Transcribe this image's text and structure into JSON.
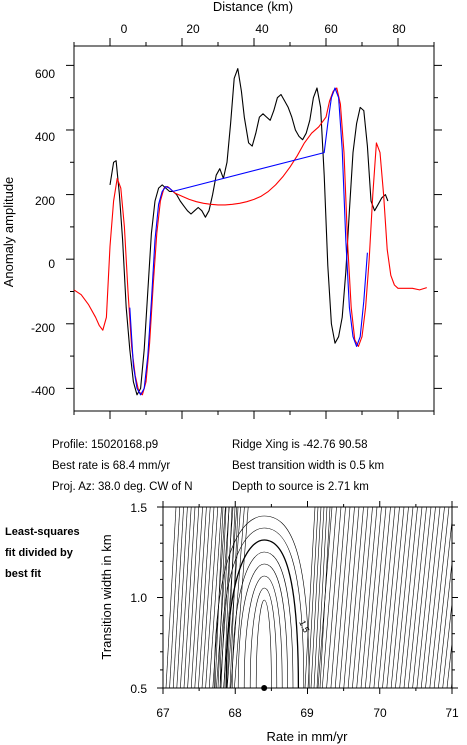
{
  "top_chart": {
    "xlabel": "Distance (km)",
    "ylabel": "Anomaly amplitude",
    "xticks": [
      "0",
      "20",
      "40",
      "60",
      "80"
    ],
    "yticks": [
      "600",
      "400",
      "200",
      "0",
      "-200",
      "-400"
    ]
  },
  "info": {
    "profile": "Profile: 15020168.p9",
    "best_rate": "Best rate is 68.4 mm/yr",
    "proj_az": "Proj. Az: 38.0 deg. CW of N",
    "ridge_xing": "Ridge Xing is -42.76 90.58",
    "best_width": "Best transition width is 0.5 km",
    "depth": "Depth to source is   2.71 km"
  },
  "contour_chart": {
    "note_line1": "Least-squares",
    "note_line2": "fit divided by",
    "note_line3": "best fit",
    "xlabel": "Rate in mm/yr",
    "ylabel": "Transition width in km",
    "xticks": [
      "67",
      "68",
      "69",
      "70",
      "71"
    ],
    "yticks": [
      "1.5",
      "1.0",
      "0.5"
    ],
    "contour_label": "1.5"
  },
  "chart_data": [
    {
      "type": "line",
      "xlabel": "Distance (km)",
      "ylabel": "Anomaly amplitude",
      "xlim": [
        -10,
        90
      ],
      "ylim": [
        -470,
        660
      ],
      "series": [
        {
          "color": "#000000",
          "x": [
            0,
            1,
            1.7,
            2.6,
            3.5,
            4.5,
            5.5,
            6.5,
            7.5,
            8.5,
            9.5,
            10.5,
            11.5,
            12.5,
            13.5,
            14.5,
            15.5,
            16.5,
            17.5,
            18.5,
            19.5,
            20.5,
            21.5,
            22.5,
            23.5,
            24.5,
            25.5,
            26.5,
            27.5,
            28.5,
            29.5,
            30.5,
            31.5,
            32.5,
            33.5,
            34.5,
            35.5,
            36.5,
            37.3,
            38.5,
            39.5,
            40.5,
            41.5,
            42.5,
            43.5,
            44.5,
            45.5,
            46.5,
            47.5,
            48.5,
            49.5,
            50.5,
            51.5,
            52.5,
            53.5,
            54.5,
            55.5,
            56.5,
            57.5,
            58.5,
            59.5,
            60.5,
            61.5,
            62.5,
            63.5,
            64.5,
            65.5,
            66.5,
            67.5,
            68.5,
            69.5,
            70.5,
            71.5,
            72.5,
            73.5,
            74.5,
            75.5,
            76.5,
            77.2
          ],
          "y": [
            230,
            300,
            305,
            200,
            60,
            -150,
            -280,
            -380,
            -420,
            -400,
            -280,
            -100,
            80,
            180,
            220,
            230,
            220,
            210,
            210,
            200,
            180,
            165,
            150,
            140,
            150,
            160,
            150,
            130,
            150,
            200,
            260,
            280,
            250,
            300,
            420,
            560,
            590,
            520,
            440,
            360,
            350,
            390,
            440,
            450,
            440,
            430,
            460,
            500,
            510,
            490,
            470,
            440,
            400,
            380,
            370,
            390,
            430,
            500,
            530,
            470,
            260,
            -20,
            -200,
            -260,
            -240,
            -180,
            -40,
            150,
            330,
            420,
            470,
            460,
            350,
            180,
            150,
            170,
            190,
            200,
            180
          ]
        },
        {
          "color": "#ff0000",
          "x": [
            -10,
            -8,
            -6,
            -4,
            -3,
            -2,
            -1,
            0,
            1,
            2,
            3,
            4,
            5,
            6,
            7,
            8,
            9,
            10,
            11,
            12,
            13,
            14,
            15,
            16,
            17,
            18,
            20,
            22,
            24,
            26,
            28,
            30,
            32,
            34,
            36,
            38,
            40,
            42,
            44,
            46,
            48,
            50,
            52,
            54,
            56,
            58,
            60,
            61,
            62,
            63,
            64,
            65,
            66,
            67,
            68,
            69,
            70,
            71,
            72,
            73,
            74,
            75,
            76,
            77,
            78,
            79,
            80,
            82,
            84,
            86,
            88
          ],
          "y": [
            -95,
            -110,
            -140,
            -180,
            -205,
            -220,
            -180,
            40,
            180,
            250,
            220,
            100,
            -100,
            -270,
            -360,
            -410,
            -420,
            -380,
            -260,
            -80,
            80,
            180,
            220,
            225,
            215,
            205,
            195,
            185,
            178,
            173,
            170,
            168,
            168,
            170,
            173,
            178,
            185,
            195,
            210,
            230,
            255,
            285,
            320,
            360,
            390,
            410,
            440,
            490,
            520,
            530,
            480,
            330,
            50,
            -150,
            -250,
            -270,
            -240,
            -150,
            0,
            200,
            360,
            330,
            200,
            30,
            -50,
            -80,
            -90,
            -90,
            -90,
            -95,
            -88
          ]
        },
        {
          "color": "#0000ff",
          "x": [
            5.5,
            6.5,
            7.5,
            8.5,
            9.5,
            10.5,
            11.5,
            12.5,
            13.5,
            14.5,
            15.5,
            16.5,
            17.5,
            59.5,
            60.5,
            61.5,
            62.5,
            63.5,
            64.5,
            65.5,
            66.5,
            67.5,
            68.5,
            69.5,
            70.5,
            71.5
          ],
          "y": [
            -150,
            -330,
            -400,
            -420,
            -400,
            -300,
            -130,
            60,
            170,
            210,
            225,
            220,
            210,
            330,
            420,
            500,
            530,
            500,
            340,
            60,
            -150,
            -240,
            -270,
            -240,
            -130,
            20
          ]
        }
      ]
    },
    {
      "type": "contour",
      "title": "Least-squares fit divided by best fit",
      "xlabel": "Rate in mm/yr",
      "ylabel": "Transition width in km",
      "xlim": [
        67,
        71
      ],
      "ylim": [
        0.5,
        1.5
      ],
      "best_fit_point": {
        "x": 68.4,
        "y": 0.5
      },
      "labeled_contour": 1.5
    }
  ]
}
